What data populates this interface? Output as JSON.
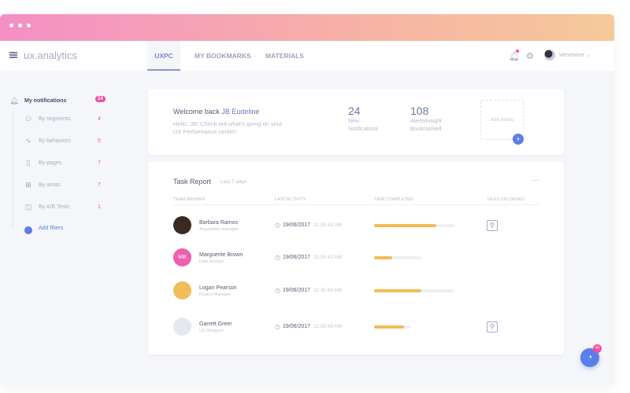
{
  "app": {
    "logo": "ux.analytics",
    "tabs": [
      "UXPC",
      "MY BOOKMARKS",
      "MATERIALS"
    ],
    "active_tab": "UXPC",
    "user": "Vervewine",
    "icons": [
      "bell-icon",
      "gear-icon",
      "chevron-down-icon",
      "menu-icon"
    ]
  },
  "sidebar": {
    "title": "My notifications",
    "count": "24",
    "items": [
      {
        "label": "By segments",
        "count": "4",
        "icon": "user-icon"
      },
      {
        "label": "By behaviors",
        "count": "5",
        "icon": "pulse-icon"
      },
      {
        "label": "By pages",
        "count": "7",
        "icon": "page-icon"
      },
      {
        "label": "By areas",
        "count": "7",
        "icon": "grid-icon"
      },
      {
        "label": "By A/B Tests",
        "count": "1",
        "icon": "columns-icon"
      }
    ],
    "add": "Add filters"
  },
  "welcome": {
    "prefix": "Welcome back ",
    "name": "JB Eudeline",
    "line1": "Hello, JB! Check out what's going on your",
    "line2": "UX Performance center!",
    "stats": [
      {
        "value": "24",
        "l1": "New",
        "l2": "Notifications"
      },
      {
        "value": "108",
        "l1": "Alerts/insight",
        "l2": "Bookmarked"
      }
    ],
    "add_alerts": "Add Alerts",
    "plus": "+"
  },
  "report": {
    "title": "Task Report",
    "period": "Last 7 days",
    "more": "···",
    "columns": [
      "TEAM MEMBER",
      "LAST ACTIVITY",
      "TASK COMPLETED",
      "FILES UPLOADED"
    ],
    "rows": [
      {
        "name": "Barbara Ramos",
        "role": "Acquisition manager",
        "date": "19/06/2017",
        "time": "11:35:43 AM",
        "progress": 77,
        "files": true
      },
      {
        "name": "Marguerite Brown",
        "role": "Data Analyst",
        "initials": "MB",
        "date": "19/06/2017",
        "time": "11:35:43 AM",
        "progress": 39,
        "files": false
      },
      {
        "name": "Logan Pearson",
        "role": "Project Manager",
        "date": "19/06/2017",
        "time": "11:35:43 AM",
        "progress": 59,
        "files": false
      },
      {
        "name": "Garrett Greer",
        "role": "UX Designer",
        "date": "19/06/2017",
        "time": "11:35:43 AM",
        "progress": 82,
        "files": true
      }
    ]
  },
  "fab": {
    "badge": "40",
    "icon": "rss-icon"
  },
  "colors": {
    "accent": "#5b7fe8",
    "pink": "#f04f9c",
    "bar": "#f1bd58"
  }
}
